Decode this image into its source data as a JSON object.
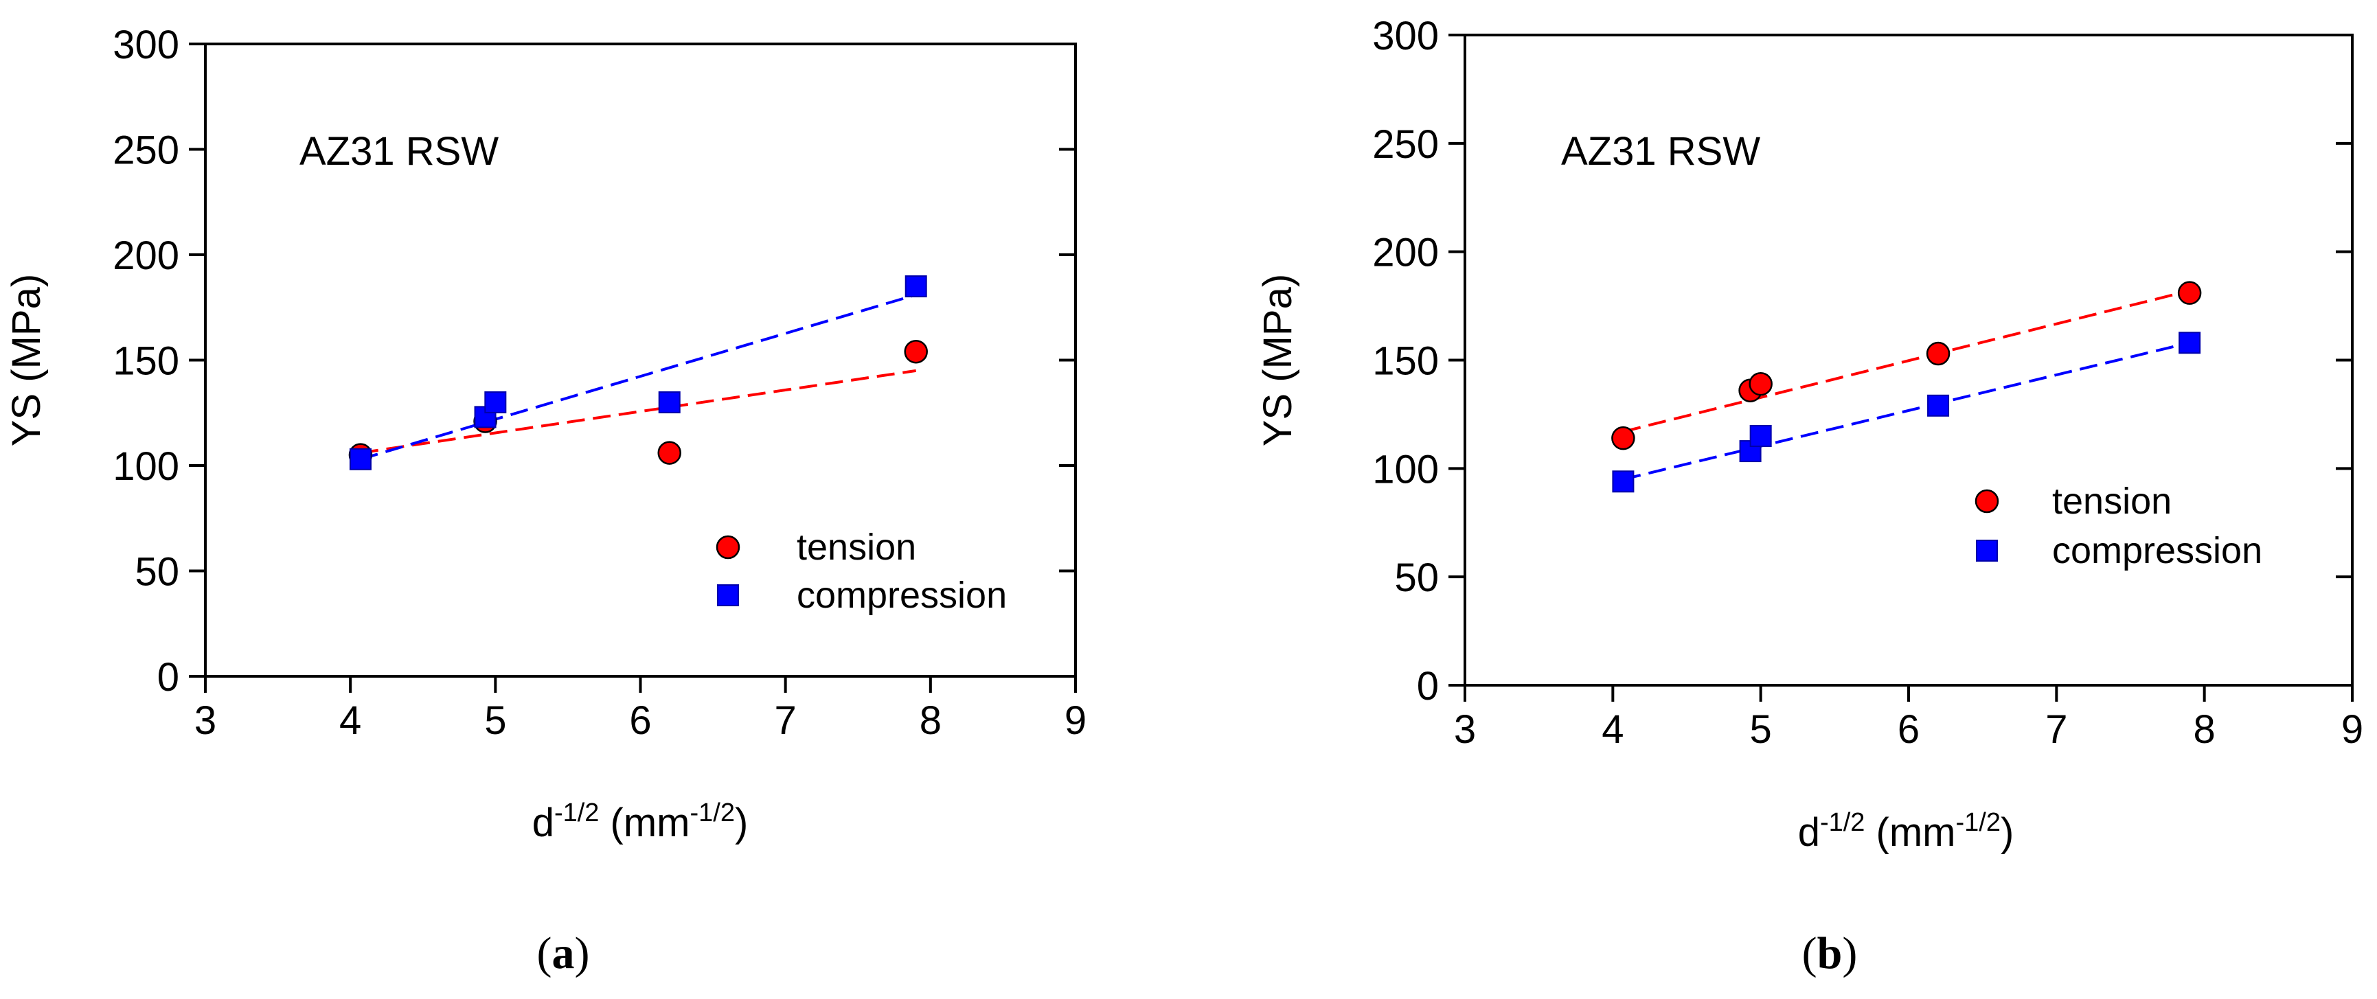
{
  "chart_data": [
    {
      "type": "scatter",
      "panel_label": "a",
      "annotation": "AZ31 RSW",
      "xlabel": {
        "base": "d",
        "base_sup": "-1/2",
        "unit_open": " (mm",
        "unit_sup": "-1/2",
        "unit_close": ")"
      },
      "ylabel": "YS (MPa)",
      "xlim": [
        3,
        9
      ],
      "ylim": [
        0,
        300
      ],
      "xticks": [
        3,
        4,
        5,
        6,
        7,
        8,
        9
      ],
      "yticks": [
        0,
        50,
        100,
        150,
        200,
        250,
        300
      ],
      "legend_position": "bottom-right",
      "grid": false,
      "series": [
        {
          "name": "tension",
          "marker": "circle",
          "color": "#ff0000",
          "x": [
            4.07,
            4.93,
            6.2,
            7.9
          ],
          "y": [
            105,
            121,
            106,
            154
          ],
          "fit": {
            "x": [
              4.07,
              7.9
            ],
            "y": [
              106,
              145
            ],
            "color": "#ff0000"
          }
        },
        {
          "name": "compression",
          "marker": "square",
          "color": "#0000ff",
          "x": [
            4.07,
            4.93,
            5.0,
            6.2,
            7.9
          ],
          "y": [
            103,
            123,
            130,
            130,
            185
          ],
          "fit": {
            "x": [
              4.07,
              7.9
            ],
            "y": [
              103,
              181
            ],
            "color": "#0000ff"
          }
        }
      ]
    },
    {
      "type": "scatter",
      "panel_label": "b",
      "annotation": "AZ31 RSW",
      "xlabel": {
        "base": "d",
        "base_sup": "-1/2",
        "unit_open": " (mm",
        "unit_sup": "-1/2",
        "unit_close": ")"
      },
      "ylabel": "YS (MPa)",
      "xlim": [
        3,
        9
      ],
      "ylim": [
        0,
        300
      ],
      "xticks": [
        3,
        4,
        5,
        6,
        7,
        8,
        9
      ],
      "yticks": [
        0,
        50,
        100,
        150,
        200,
        250,
        300
      ],
      "legend_position": "center-right",
      "grid": false,
      "series": [
        {
          "name": "tension",
          "marker": "circle",
          "color": "#ff0000",
          "x": [
            4.07,
            4.93,
            5.0,
            6.2,
            7.9
          ],
          "y": [
            114,
            136,
            139,
            153,
            181
          ],
          "fit": {
            "x": [
              4.07,
              7.9
            ],
            "y": [
              117,
              182
            ],
            "color": "#ff0000"
          }
        },
        {
          "name": "compression",
          "marker": "square",
          "color": "#0000ff",
          "x": [
            4.07,
            4.93,
            5.0,
            6.2,
            7.9
          ],
          "y": [
            94,
            108,
            115,
            129,
            158
          ],
          "fit": {
            "x": [
              4.07,
              7.9
            ],
            "y": [
              95,
              158
            ],
            "color": "#0000ff"
          }
        }
      ]
    }
  ]
}
